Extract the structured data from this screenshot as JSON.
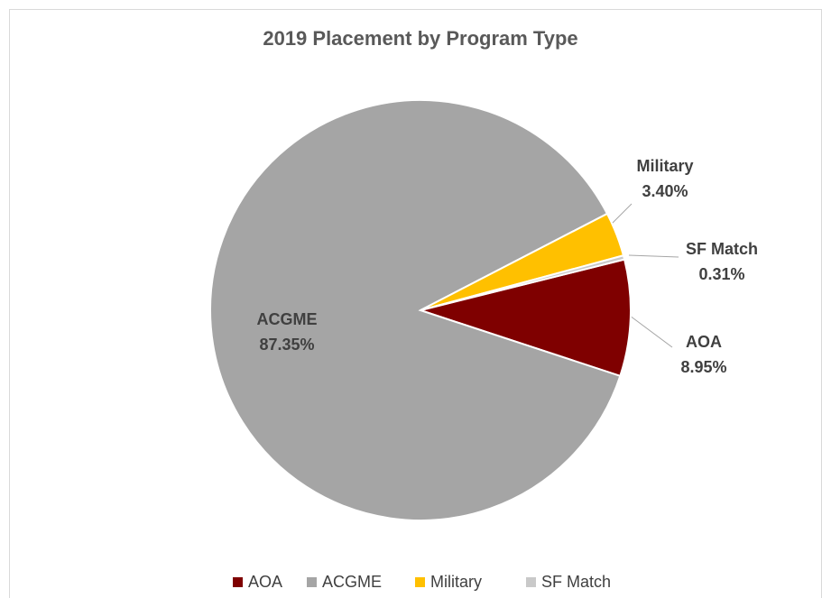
{
  "chart_data": {
    "type": "pie",
    "title": "2019 Placement by Program Type",
    "categories": [
      "AOA",
      "ACGME",
      "Military",
      "SF Match"
    ],
    "values": [
      8.95,
      87.35,
      3.4,
      0.31
    ],
    "value_labels": [
      "8.95%",
      "87.35%",
      "3.40%",
      "0.31%"
    ],
    "colors": [
      "#7f0000",
      "#a5a5a5",
      "#ffc000",
      "#c9c9c9"
    ],
    "legend": "bottom"
  }
}
